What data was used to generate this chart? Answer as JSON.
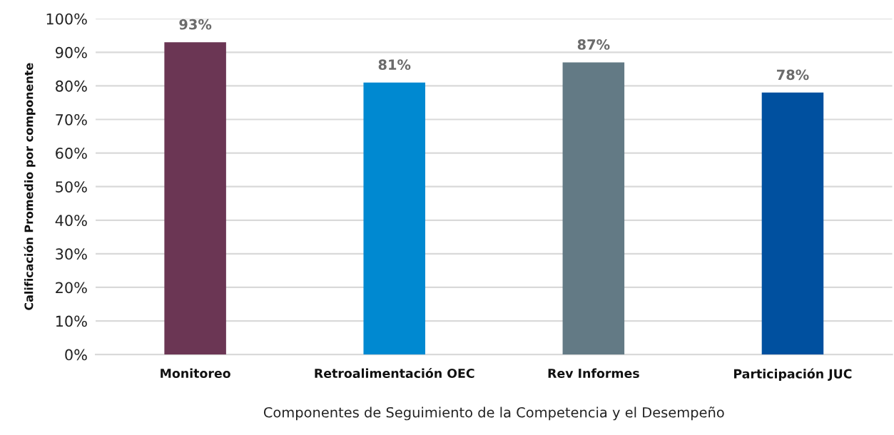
{
  "chart_data": {
    "type": "bar",
    "xlabel": "Componentes de Seguimiento de la Competencia y el Desempeño",
    "ylabel": "Calificación Promedio por componente",
    "categories": [
      "Monitoreo",
      "Retroalimentación OEC",
      "Rev Informes",
      "Participación JUC"
    ],
    "values": [
      93,
      81,
      87,
      78
    ],
    "colors": [
      "#6b3654",
      "#0089d1",
      "#637a85",
      "#00509f"
    ],
    "value_labels": [
      "93%",
      "81%",
      "87%",
      "78%"
    ],
    "ylim": [
      0,
      100
    ],
    "yticks": [
      {
        "value": 0,
        "label": "0%"
      },
      {
        "value": 10,
        "label": "10%"
      },
      {
        "value": 20,
        "label": "20%"
      },
      {
        "value": 30,
        "label": "30%"
      },
      {
        "value": 40,
        "label": "40%"
      },
      {
        "value": 50,
        "label": "50%"
      },
      {
        "value": 60,
        "label": "60%"
      },
      {
        "value": 70,
        "label": "70%"
      },
      {
        "value": 80,
        "label": "80%"
      },
      {
        "value": 90,
        "label": "90%"
      },
      {
        "value": 100,
        "label": "100%"
      }
    ],
    "grid": "y",
    "legend": false
  }
}
